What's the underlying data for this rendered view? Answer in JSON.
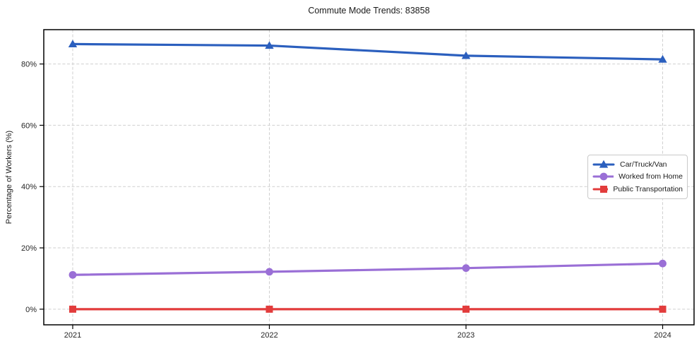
{
  "chart_data": {
    "type": "line",
    "title": "Commute Mode Trends: 83858",
    "xlabel": "",
    "ylabel": "Percentage of Workers (%)",
    "categories": [
      "2021",
      "2022",
      "2023",
      "2024"
    ],
    "series": [
      {
        "name": "Car/Truck/Van",
        "values": [
          86.5,
          86.0,
          82.7,
          81.5
        ],
        "color": "#2b5fbe",
        "marker": "triangle"
      },
      {
        "name": "Worked from Home",
        "values": [
          11.2,
          12.2,
          13.4,
          14.9
        ],
        "color": "#9a6fd6",
        "marker": "circle"
      },
      {
        "name": "Public Transportation",
        "values": [
          0.0,
          0.0,
          0.0,
          0.0
        ],
        "color": "#e23c3c",
        "marker": "square"
      }
    ],
    "yticks": [
      {
        "value": 0,
        "label": "0%"
      },
      {
        "value": 20,
        "label": "20%"
      },
      {
        "value": 40,
        "label": "40%"
      },
      {
        "value": 60,
        "label": "60%"
      },
      {
        "value": 80,
        "label": "80%"
      }
    ],
    "ylim": [
      -5.1,
      91.2
    ],
    "grid": true,
    "background": "#ffffff",
    "grid_color": "#cfcfcf",
    "spine_color": "#000000",
    "legend_position": "center-right"
  }
}
